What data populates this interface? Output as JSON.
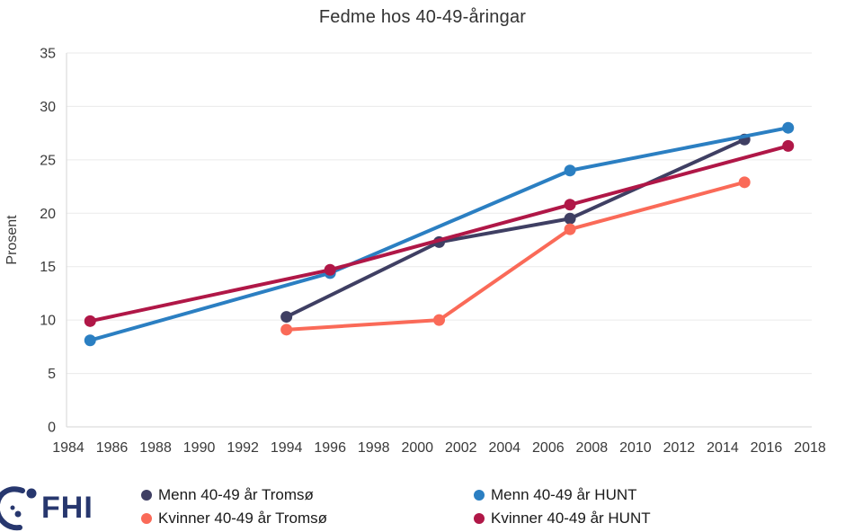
{
  "title": "Fedme hos 40-49-åringar",
  "footer": {
    "logo_text": "FHI"
  },
  "colors": {
    "grid": "#EAEAEA",
    "axis": "#D6D6D6",
    "tick_text": "#3A3A3A",
    "title_text": "#333333",
    "logo_navy": "#27376E"
  },
  "chart_data": {
    "type": "line",
    "title": "Fedme hos 40-49-åringar",
    "xlabel": "",
    "ylabel": "Prosent",
    "xlim": [
      1984,
      2018
    ],
    "ylim": [
      0,
      35
    ],
    "xticks": [
      1984,
      1986,
      1988,
      1990,
      1992,
      1994,
      1996,
      1998,
      2000,
      2002,
      2004,
      2006,
      2008,
      2010,
      2012,
      2014,
      2016,
      2018
    ],
    "yticks": [
      0,
      5,
      10,
      15,
      20,
      25,
      30,
      35
    ],
    "grid": "horizontal",
    "legend_position": "bottom",
    "series": [
      {
        "name": "Menn 40-49 år Tromsø",
        "color": "#3F3F63",
        "x": [
          1994,
          2001,
          2007,
          2015
        ],
        "y": [
          10.3,
          17.3,
          19.5,
          26.9
        ]
      },
      {
        "name": "Menn 40-49 år HUNT",
        "color": "#2B7FC2",
        "x": [
          1985,
          1996,
          2007,
          2017
        ],
        "y": [
          8.1,
          14.4,
          24.0,
          28.0
        ]
      },
      {
        "name": "Kvinner 40-49 år Tromsø",
        "color": "#FA6A58",
        "x": [
          1994,
          2001,
          2007,
          2015
        ],
        "y": [
          9.1,
          10.0,
          18.5,
          22.9
        ]
      },
      {
        "name": "Kvinner 40-49 år HUNT",
        "color": "#B01747",
        "x": [
          1985,
          1996,
          2007,
          2017
        ],
        "y": [
          9.9,
          14.7,
          20.8,
          26.3
        ]
      }
    ]
  }
}
